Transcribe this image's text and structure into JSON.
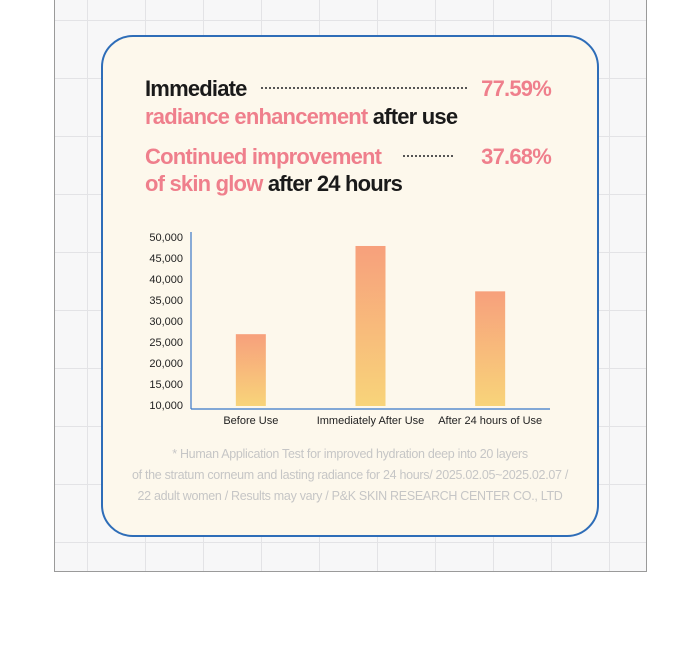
{
  "headline": {
    "line1": {
      "lead": "Immediate",
      "percent": "77.59%"
    },
    "line2": {
      "highlight": "radiance enhancement",
      "rest": "after use"
    },
    "line3": {
      "highlight": "Continued improvement",
      "percent": "37.68%"
    },
    "line4": {
      "highlight": "of skin glow",
      "rest": "after 24 hours"
    }
  },
  "chart_data": {
    "type": "bar",
    "categories": [
      "Before Use",
      "Immediately After Use",
      "After 24 hours of Use"
    ],
    "values": [
      27100,
      48100,
      37300
    ],
    "color": [
      "#f7a07c",
      "#f8d47a"
    ],
    "ylim": [
      10000,
      50000
    ],
    "yticks": [
      {
        "value": 10000,
        "label": "10,000"
      },
      {
        "value": 15000,
        "label": "15,000"
      },
      {
        "value": 20000,
        "label": "20,000"
      },
      {
        "value": 25000,
        "label": "25,000"
      },
      {
        "value": 30000,
        "label": "30,000"
      },
      {
        "value": 35000,
        "label": "35,000"
      },
      {
        "value": 40000,
        "label": "40,000"
      },
      {
        "value": 45000,
        "label": "45,000"
      },
      {
        "value": 50000,
        "label": "50,000"
      }
    ]
  },
  "footnote": [
    "* Human Application Test for improved hydration deep into 20 layers",
    "of the stratum corneum and lasting radiance for 24 hours/ 2025.02.05~2025.02.07 /",
    "22 adult women / Results may vary / P&K SKIN RESEARCH CENTER CO., LTD"
  ]
}
